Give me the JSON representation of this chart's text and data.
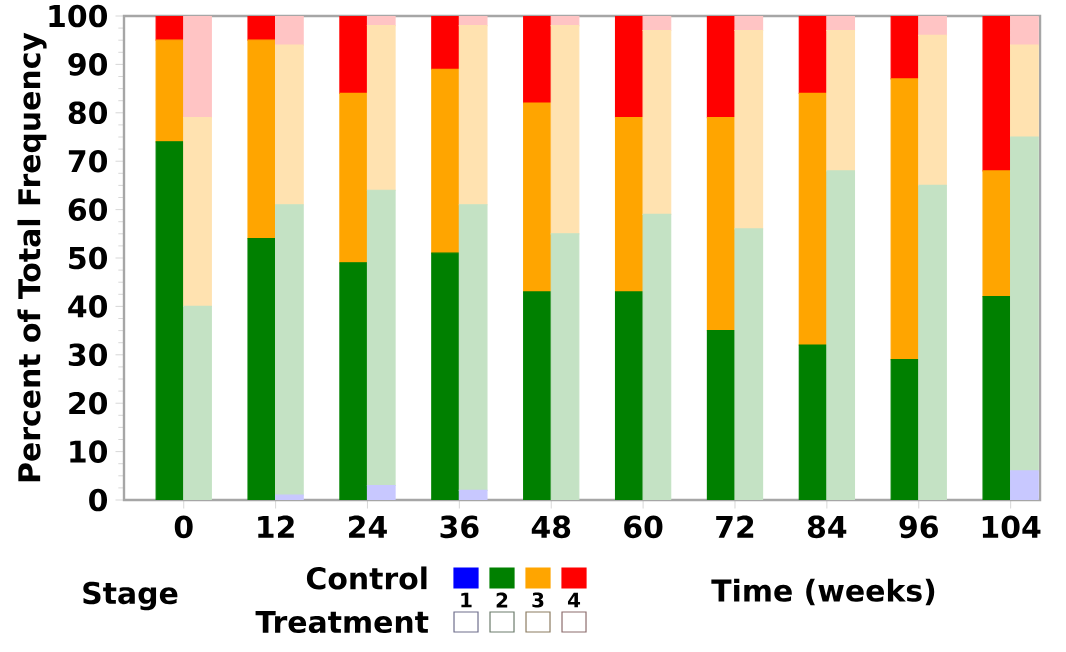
{
  "chart_data": [
    {
      "type": "bar",
      "stacked": true,
      "title": "Control",
      "xlabel": "Time (weeks)",
      "ylabel": "Percent of Total Frequency",
      "legend": "bottom",
      "legend_title": "Stage",
      "categories": [
        "0",
        "12",
        "24",
        "36",
        "48",
        "60",
        "72",
        "84",
        "96",
        "104"
      ],
      "ylim": [
        0,
        100
      ],
      "yticks": [
        0,
        10,
        20,
        30,
        40,
        50,
        60,
        70,
        80,
        90,
        100
      ],
      "series": [
        {
          "name": "1",
          "color": "#0000ff",
          "values": [
            0,
            0,
            0,
            0,
            0,
            0,
            0,
            0,
            0,
            0
          ]
        },
        {
          "name": "2",
          "color": "#008000",
          "values": [
            74,
            54,
            49,
            51,
            43,
            43,
            35,
            32,
            29,
            42
          ]
        },
        {
          "name": "3",
          "color": "#ffa500",
          "values": [
            21,
            41,
            35,
            38,
            39,
            36,
            44,
            52,
            58,
            26
          ]
        },
        {
          "name": "4",
          "color": "#ff0000",
          "values": [
            5,
            5,
            16,
            11,
            18,
            21,
            21,
            16,
            13,
            32
          ]
        }
      ]
    },
    {
      "type": "bar",
      "stacked": true,
      "title": "Treatment",
      "tick_labels": false,
      "categories": [
        "0",
        "12",
        "24",
        "36",
        "48",
        "60",
        "72",
        "84",
        "96",
        "104"
      ],
      "ylim": [
        0,
        100
      ],
      "series": [
        {
          "color": "#c8c8ff",
          "values": [
            0,
            1,
            3,
            2,
            0,
            0,
            0,
            0,
            0,
            6
          ]
        },
        {
          "color": "#c4e2c4",
          "values": [
            40,
            60,
            61,
            59,
            55,
            59,
            56,
            68,
            65,
            69
          ]
        },
        {
          "color": "#ffe2b0",
          "values": [
            39,
            33,
            34,
            37,
            43,
            38,
            41,
            29,
            31,
            19
          ]
        },
        {
          "color": "#ffc4c4",
          "values": [
            21,
            6,
            2,
            2,
            2,
            3,
            3,
            3,
            4,
            6
          ]
        }
      ]
    }
  ]
}
